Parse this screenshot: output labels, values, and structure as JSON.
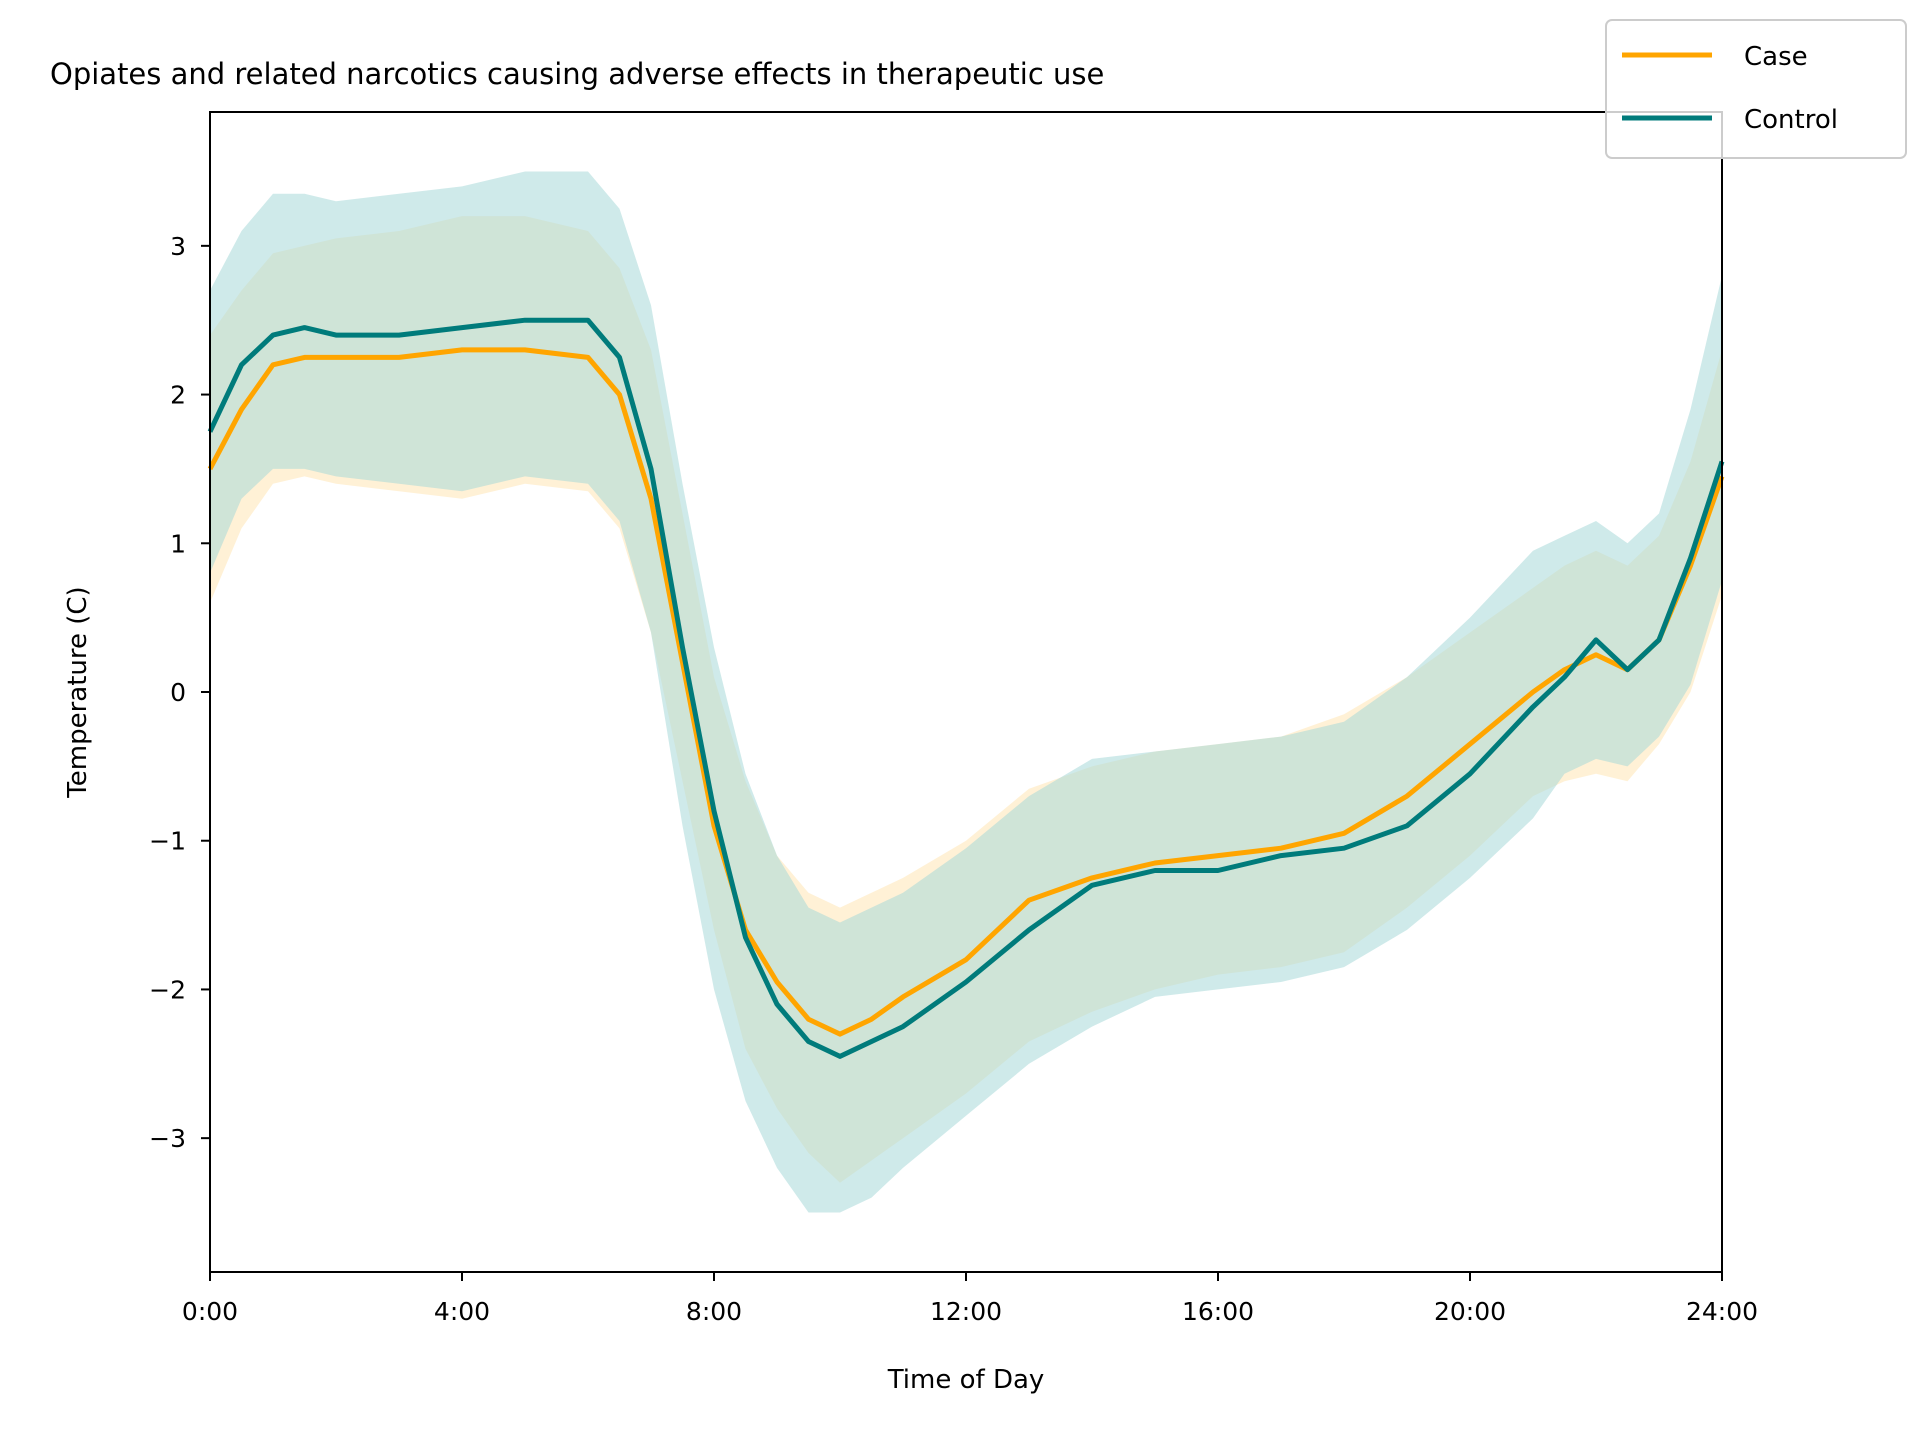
{
  "chart_data": {
    "type": "line",
    "title": "Opiates and related narcotics causing adverse effects in therapeutic use",
    "xlabel": "Time of Day",
    "ylabel": "Temperature (C)",
    "xlim": [
      0,
      24
    ],
    "ylim": [
      -3.9,
      3.9
    ],
    "xticks": [
      0,
      4,
      8,
      12,
      16,
      20,
      24
    ],
    "xtick_labels": [
      "0:00",
      "4:00",
      "8:00",
      "12:00",
      "16:00",
      "20:00",
      "24:00"
    ],
    "yticks": [
      3,
      2,
      1,
      0,
      -1,
      -2,
      -3
    ],
    "ytick_labels": [
      "3",
      "2",
      "1",
      "0",
      "−1",
      "−2",
      "−3"
    ],
    "grid": false,
    "legend_position": "top-right",
    "x": [
      0,
      0.5,
      1,
      1.5,
      2,
      3,
      4,
      5,
      6,
      6.5,
      7,
      7.5,
      8,
      8.5,
      9,
      9.5,
      10,
      10.5,
      11,
      12,
      13,
      14,
      15,
      16,
      17,
      18,
      19,
      20,
      21,
      21.5,
      22,
      22.5,
      23,
      23.5,
      24
    ],
    "series": [
      {
        "name": "Case",
        "color": "#FFA500",
        "band_color": "#FFE5B4",
        "values": [
          1.5,
          1.9,
          2.2,
          2.25,
          2.25,
          2.25,
          2.3,
          2.3,
          2.25,
          2.0,
          1.3,
          0.2,
          -0.9,
          -1.6,
          -1.95,
          -2.2,
          -2.3,
          -2.2,
          -2.05,
          -1.8,
          -1.4,
          -1.25,
          -1.15,
          -1.1,
          -1.05,
          -0.95,
          -0.7,
          -0.35,
          0.0,
          0.15,
          0.25,
          0.15,
          0.35,
          0.85,
          1.45
        ],
        "lower": [
          0.6,
          1.1,
          1.4,
          1.45,
          1.4,
          1.35,
          1.3,
          1.4,
          1.35,
          1.1,
          0.4,
          -0.6,
          -1.6,
          -2.4,
          -2.8,
          -3.1,
          -3.3,
          -3.15,
          -3.0,
          -2.7,
          -2.35,
          -2.15,
          -2.0,
          -1.9,
          -1.85,
          -1.75,
          -1.45,
          -1.1,
          -0.7,
          -0.6,
          -0.55,
          -0.6,
          -0.35,
          0.0,
          0.65
        ],
        "upper": [
          2.4,
          2.7,
          2.95,
          3.0,
          3.05,
          3.1,
          3.2,
          3.2,
          3.1,
          2.85,
          2.3,
          1.2,
          0.1,
          -0.6,
          -1.1,
          -1.35,
          -1.45,
          -1.35,
          -1.25,
          -1.0,
          -0.65,
          -0.5,
          -0.4,
          -0.35,
          -0.3,
          -0.15,
          0.1,
          0.4,
          0.7,
          0.85,
          0.95,
          0.85,
          1.05,
          1.55,
          2.3
        ]
      },
      {
        "name": "Control",
        "color": "#007B7B",
        "band_color": "#A8D8D8",
        "values": [
          1.75,
          2.2,
          2.4,
          2.45,
          2.4,
          2.4,
          2.45,
          2.5,
          2.5,
          2.25,
          1.5,
          0.3,
          -0.8,
          -1.65,
          -2.1,
          -2.35,
          -2.45,
          -2.35,
          -2.25,
          -1.95,
          -1.6,
          -1.3,
          -1.2,
          -1.2,
          -1.1,
          -1.05,
          -0.9,
          -0.55,
          -0.1,
          0.1,
          0.35,
          0.15,
          0.35,
          0.9,
          1.55
        ],
        "lower": [
          0.8,
          1.3,
          1.5,
          1.5,
          1.45,
          1.4,
          1.35,
          1.45,
          1.4,
          1.15,
          0.4,
          -0.9,
          -2.0,
          -2.75,
          -3.2,
          -3.5,
          -3.5,
          -3.4,
          -3.2,
          -2.85,
          -2.5,
          -2.25,
          -2.05,
          -2.0,
          -1.95,
          -1.85,
          -1.6,
          -1.25,
          -0.85,
          -0.55,
          -0.45,
          -0.5,
          -0.3,
          0.05,
          0.75
        ],
        "upper": [
          2.7,
          3.1,
          3.35,
          3.35,
          3.3,
          3.35,
          3.4,
          3.5,
          3.5,
          3.25,
          2.6,
          1.4,
          0.3,
          -0.55,
          -1.1,
          -1.45,
          -1.55,
          -1.45,
          -1.35,
          -1.05,
          -0.7,
          -0.45,
          -0.4,
          -0.35,
          -0.3,
          -0.2,
          0.1,
          0.5,
          0.95,
          1.05,
          1.15,
          1.0,
          1.2,
          1.9,
          2.8
        ]
      }
    ]
  }
}
